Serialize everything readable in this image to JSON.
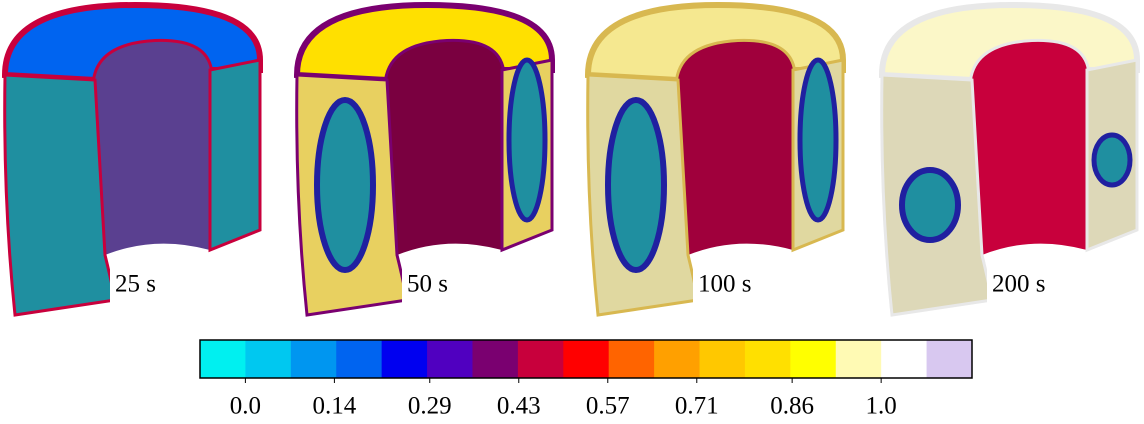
{
  "panels": [
    {
      "label": "25 s"
    },
    {
      "label": "50 s"
    },
    {
      "label": "100 s"
    },
    {
      "label": "200 s"
    }
  ],
  "colorbar": {
    "colors": [
      "#00f0f0",
      "#00c8f0",
      "#0096f0",
      "#0064f0",
      "#0000f0",
      "#5000c0",
      "#7a0070",
      "#c8003c",
      "#ff0000",
      "#ff6400",
      "#ffa000",
      "#ffc800",
      "#ffe000",
      "#ffff00",
      "#fffab4",
      "#ffffff",
      "#d8c8f0"
    ],
    "lim": [
      -0.0714,
      1.1429
    ],
    "ticks": [
      {
        "value": 0,
        "label": "0.0"
      },
      0.14,
      0.29,
      0.43,
      0.57,
      0.71,
      0.86,
      {
        "value": 1,
        "label": "1.0"
      }
    ]
  }
}
